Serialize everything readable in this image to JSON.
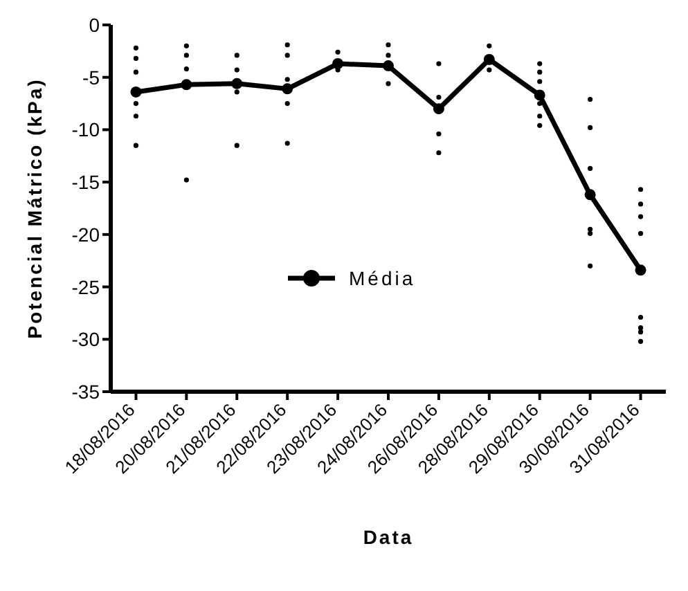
{
  "chart_data": {
    "type": "line",
    "xlabel": "Data",
    "ylabel": "Potencial Mátrico (kPa)",
    "categories": [
      "18/08/2016",
      "20/08/2016",
      "21/08/2016",
      "22/08/2016",
      "23/08/2016",
      "24/08/2016",
      "26/08/2016",
      "28/08/2016",
      "29/08/2016",
      "30/08/2016",
      "31/08/2016"
    ],
    "series": [
      {
        "type": "scatter",
        "color": "#000000",
        "x": [
          "18/08/2016",
          "18/08/2016",
          "18/08/2016",
          "18/08/2016",
          "18/08/2016",
          "18/08/2016",
          "20/08/2016",
          "20/08/2016",
          "20/08/2016",
          "20/08/2016",
          "21/08/2016",
          "21/08/2016",
          "21/08/2016",
          "21/08/2016",
          "22/08/2016",
          "22/08/2016",
          "22/08/2016",
          "22/08/2016",
          "22/08/2016",
          "23/08/2016",
          "23/08/2016",
          "24/08/2016",
          "24/08/2016",
          "24/08/2016",
          "26/08/2016",
          "26/08/2016",
          "26/08/2016",
          "26/08/2016",
          "28/08/2016",
          "28/08/2016",
          "29/08/2016",
          "29/08/2016",
          "29/08/2016",
          "29/08/2016",
          "29/08/2016",
          "29/08/2016",
          "30/08/2016",
          "30/08/2016",
          "30/08/2016",
          "30/08/2016",
          "30/08/2016",
          "30/08/2016",
          "31/08/2016",
          "31/08/2016",
          "31/08/2016",
          "31/08/2016",
          "31/08/2016",
          "31/08/2016",
          "31/08/2016",
          "31/08/2016"
        ],
        "values": [
          -2.2,
          -3.2,
          -4.5,
          -7.5,
          -8.7,
          -11.5,
          -2.0,
          -2.9,
          -4.2,
          -14.8,
          -2.9,
          -4.3,
          -6.4,
          -11.5,
          -1.9,
          -2.9,
          -5.2,
          -7.5,
          -11.3,
          -2.6,
          -4.3,
          -1.9,
          -2.9,
          -5.6,
          -3.7,
          -6.9,
          -10.4,
          -12.2,
          -2.0,
          -4.3,
          -3.7,
          -4.5,
          -5.4,
          -7.5,
          -8.7,
          -9.6,
          -7.1,
          -9.8,
          -13.7,
          -19.5,
          -19.9,
          -23.0,
          -15.7,
          -17.1,
          -18.3,
          -19.9,
          -27.9,
          -28.9,
          -29.3,
          -30.2
        ]
      },
      {
        "name": "Média",
        "color": "#000000",
        "values": [
          -6.4,
          -5.7,
          -5.6,
          -6.1,
          -3.7,
          -3.9,
          -8.0,
          -3.3,
          -6.7,
          -16.2,
          -23.4
        ]
      }
    ],
    "ylim": [
      -35,
      0
    ],
    "yticks": [
      -35,
      -30,
      -25,
      -20,
      -15,
      -10,
      -5,
      0
    ],
    "grid": false,
    "legend": "center",
    "marker": "circle",
    "line_style": "solid"
  }
}
